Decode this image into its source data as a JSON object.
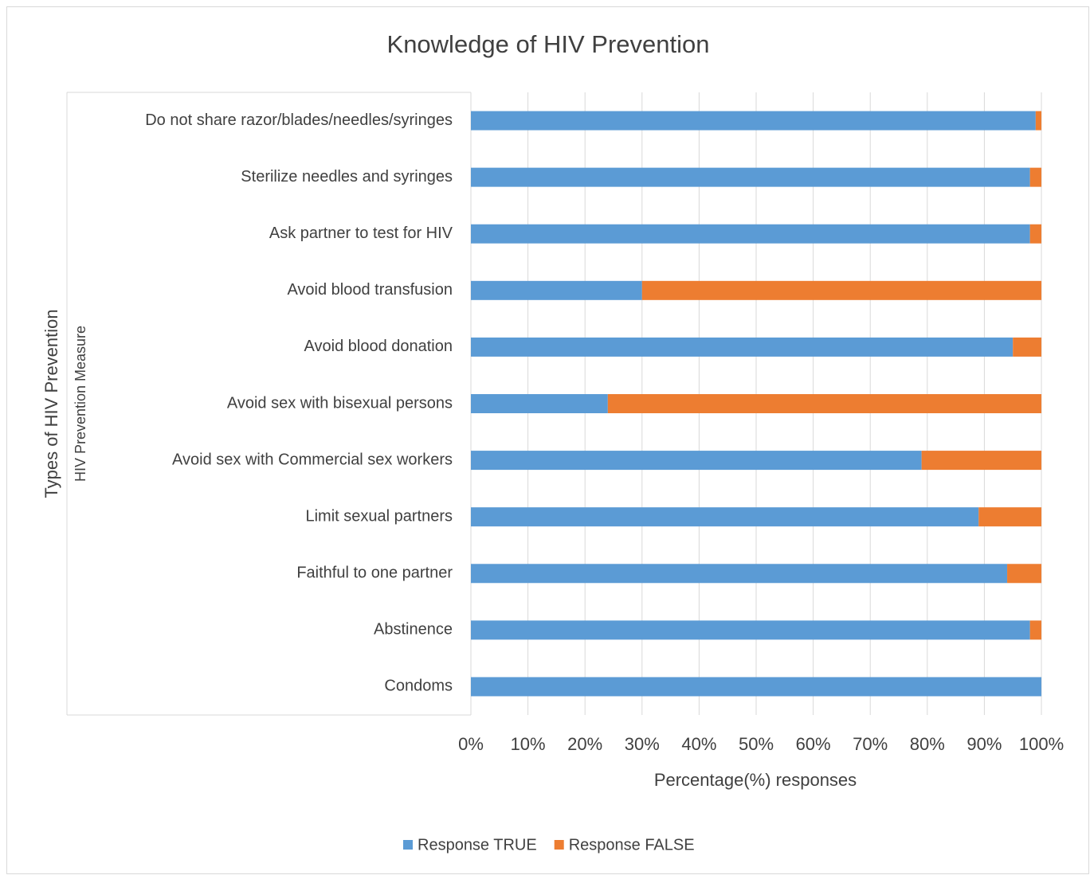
{
  "chart_data": {
    "type": "stacked_bar_horizontal",
    "title": "Knowledge of HIV Prevention",
    "xlabel": "Percentage(%) responses",
    "ylabel": "Types of HIV Prevention",
    "ylabel_secondary": "HIV Prevention Measure",
    "categories": [
      "Do not share razor/blades/needles/syringes",
      "Sterilize needles and syringes",
      "Ask partner to test for HIV",
      "Avoid blood transfusion",
      "Avoid blood donation",
      "Avoid sex with bisexual persons",
      "Avoid sex with Commercial sex workers",
      "Limit sexual partners",
      "Faithful to one partner",
      "Abstinence",
      "Condoms"
    ],
    "series": [
      {
        "name": "Response TRUE",
        "color": "#5b9bd5",
        "values": [
          99,
          98,
          98,
          30,
          95,
          24,
          79,
          89,
          94,
          98,
          100
        ]
      },
      {
        "name": "Response FALSE",
        "color": "#ed7d31",
        "values": [
          1,
          2,
          2,
          70,
          5,
          76,
          21,
          11,
          6,
          2,
          0
        ]
      }
    ],
    "xlim": [
      0,
      100
    ],
    "xticks": [
      {
        "value": 0,
        "label": "0%"
      },
      {
        "value": 10,
        "label": "10%"
      },
      {
        "value": 20,
        "label": "20%"
      },
      {
        "value": 30,
        "label": "30%"
      },
      {
        "value": 40,
        "label": "40%"
      },
      {
        "value": 50,
        "label": "50%"
      },
      {
        "value": 60,
        "label": "60%"
      },
      {
        "value": 70,
        "label": "70%"
      },
      {
        "value": 80,
        "label": "80%"
      },
      {
        "value": 90,
        "label": "90%"
      },
      {
        "value": 100,
        "label": "100%"
      }
    ],
    "grid": true,
    "legend": "bottom"
  }
}
